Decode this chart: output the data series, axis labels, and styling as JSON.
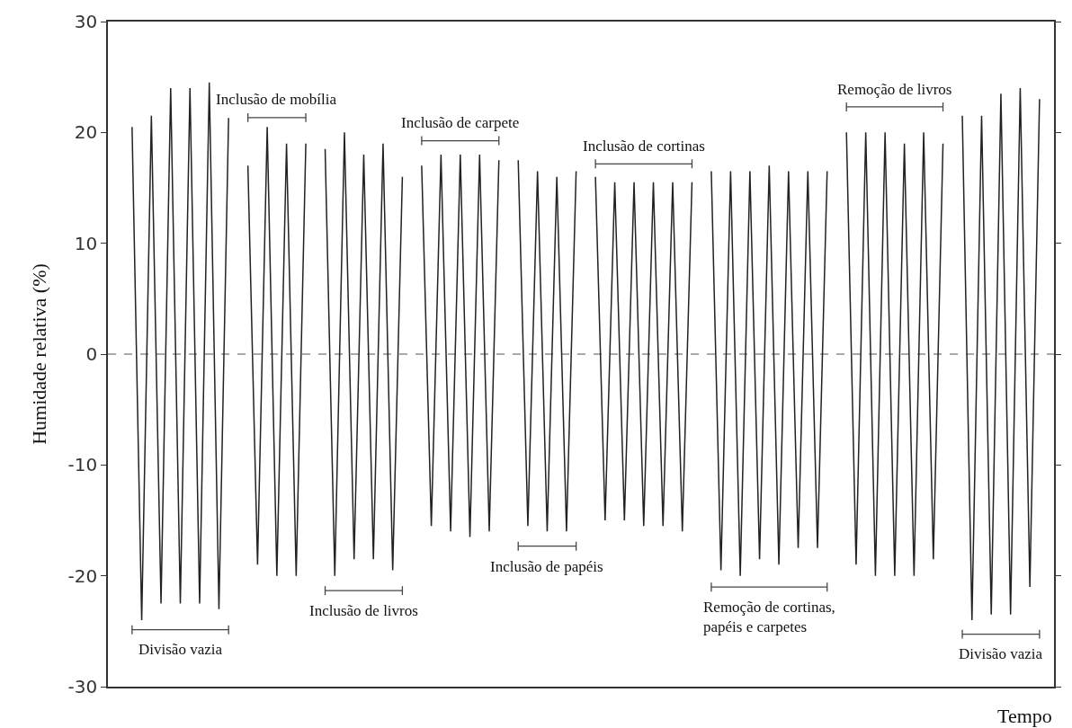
{
  "chart_data": {
    "type": "line",
    "xlabel": "Tempo",
    "ylabel": "Humidade relativa (%)",
    "categories": [
      null,
      null,
      null,
      null,
      null,
      null,
      null,
      null,
      null,
      null,
      null,
      null,
      null,
      null,
      null,
      null,
      null,
      null,
      null,
      null,
      null,
      null,
      null,
      null,
      null,
      null,
      null,
      null,
      null,
      null,
      null,
      null,
      null,
      null,
      null,
      null,
      null,
      null,
      null,
      null,
      null,
      null,
      null,
      null,
      null,
      null,
      null,
      null,
      null,
      null,
      null,
      null,
      null,
      null,
      null,
      null,
      null,
      null,
      null,
      null,
      null,
      null,
      null,
      null,
      null,
      null,
      null,
      null,
      null,
      null,
      null,
      null,
      null,
      null,
      null,
      null,
      null,
      null,
      null,
      null,
      null,
      null,
      null,
      null,
      null,
      null,
      null,
      null,
      null,
      null,
      null,
      null,
      null,
      null,
      null,
      null,
      null,
      null
    ],
    "series": [
      {
        "color": "#222222",
        "values": [
          null,
          null,
          20.5,
          -24,
          21.5,
          -22.5,
          24,
          -22.5,
          24,
          -22.5,
          24.5,
          -23,
          21.3,
          null,
          17,
          -19,
          20.5,
          -20,
          19,
          -20,
          19,
          null,
          18.5,
          -20,
          20,
          -18.5,
          18,
          -18.5,
          19,
          -19.5,
          16,
          null,
          17,
          -15.5,
          18,
          -16,
          18,
          -16.5,
          18,
          -16,
          17.5,
          null,
          17.5,
          -15.5,
          16.5,
          -16,
          16,
          -16,
          16.5,
          null,
          16,
          -15,
          15.5,
          -15,
          15.5,
          -15.5,
          15.5,
          -15.5,
          15.5,
          -16,
          15.5,
          null,
          16.5,
          -19.5,
          16.5,
          -20,
          16.5,
          -18.5,
          17,
          -19,
          16.5,
          -17.5,
          16.5,
          -17.5,
          16.5,
          null,
          20,
          -19,
          20,
          -20,
          20,
          -20,
          19,
          -20,
          20,
          -18.5,
          19,
          null,
          21.5,
          -24,
          21.5,
          -23.5,
          23.5,
          -23.5,
          24,
          -21,
          23,
          null
        ]
      }
    ],
    "ylim": [
      -30,
      30
    ],
    "yticks": [
      -30,
      -20,
      -10,
      0,
      10,
      20,
      30
    ],
    "tick_labels": "y",
    "grid": false,
    "marker": "none",
    "line_style": "solid",
    "ref_lines": [
      {
        "axis": "y",
        "value": 0,
        "color": "#555555",
        "line_style": "dashed"
      }
    ],
    "annotations": [
      "Divisão vazia",
      "Inclusão de mobília",
      "Inclusão de livros",
      "Inclusão de carpete",
      "Inclusão de papéis",
      "Inclusão de cortinas",
      "Remoção de cortinas,\npapéis e carpetes",
      "Remoção de livros",
      "Divisão vazia"
    ]
  }
}
